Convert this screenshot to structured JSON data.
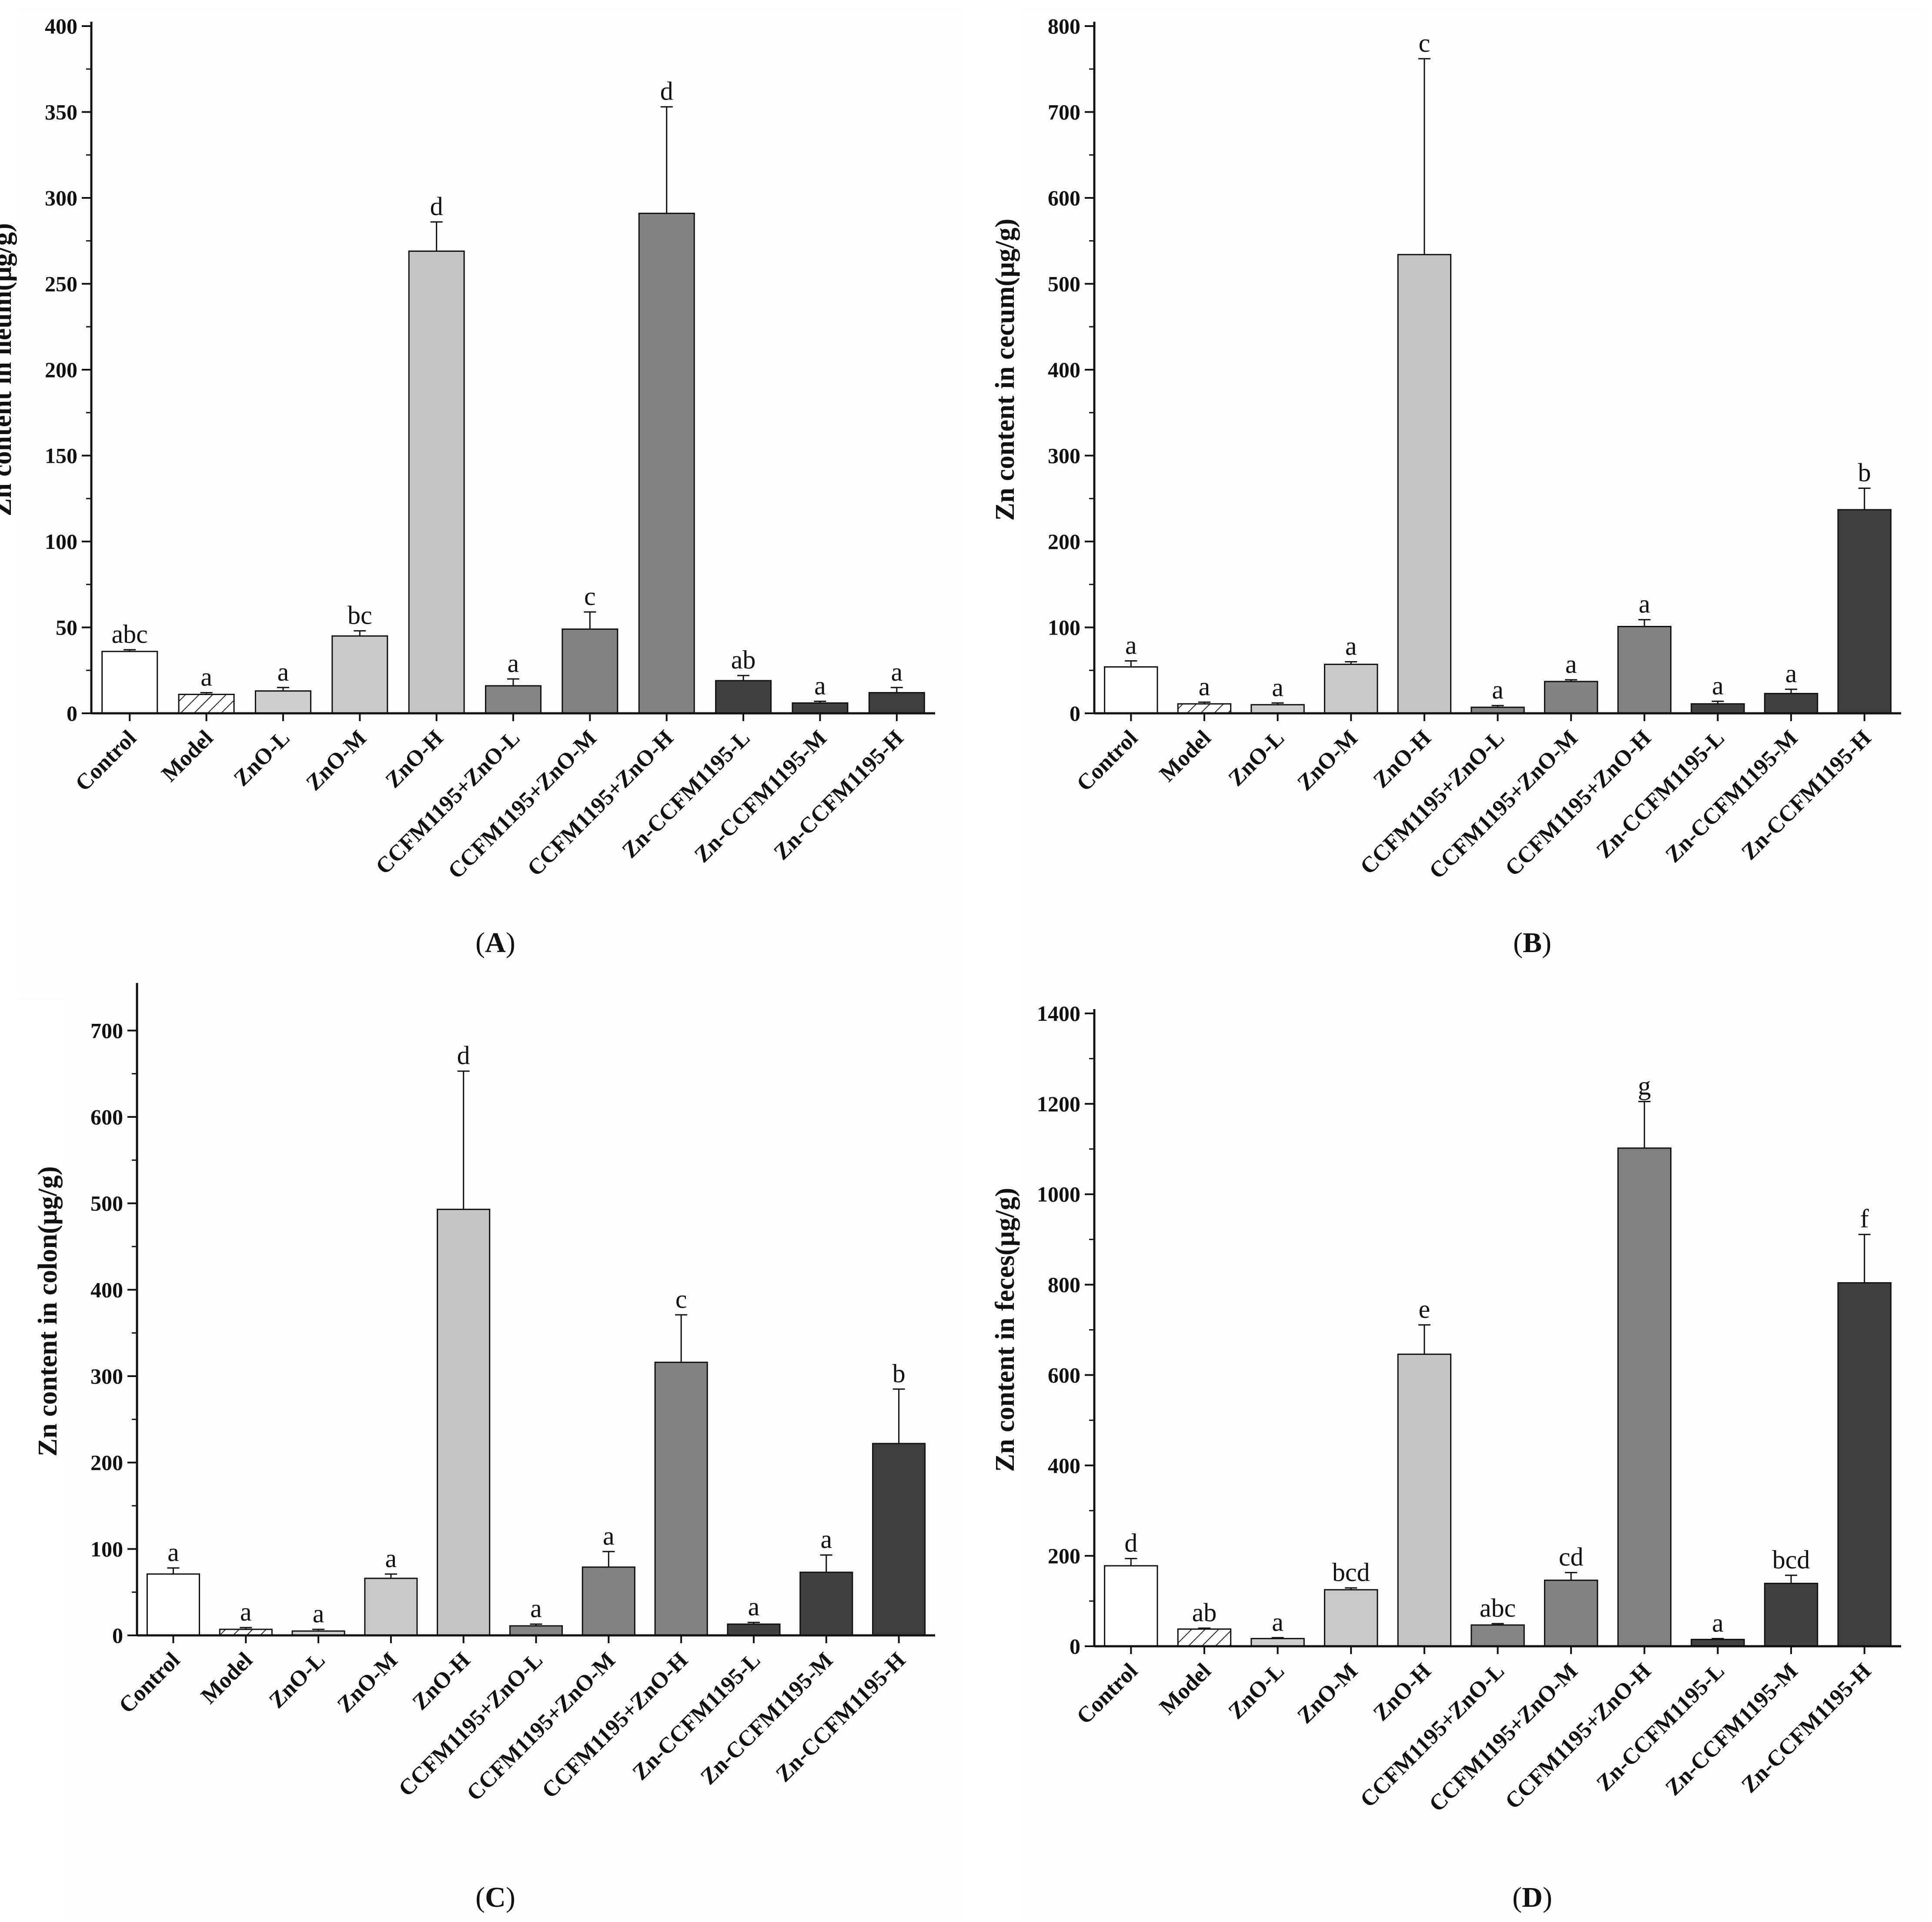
{
  "figure": {
    "panel_labels": [
      "A",
      "B",
      "C",
      "D"
    ]
  },
  "colors": {
    "Control": "#ffffff",
    "Model": "#ffffff",
    "ZnO-L": "#cfcfcf",
    "ZnO-M": "#c9c9c9",
    "ZnO-H": "#c4c4c4",
    "CCFM1195+ZnO-L": "#858585",
    "CCFM1195+ZnO-M": "#838383",
    "CCFM1195+ZnO-H": "#828282",
    "Zn-CCFM1195-L": "#424242",
    "Zn-CCFM1195-M": "#404040",
    "Zn-CCFM1195-H": "#3e3e3e"
  },
  "chart_data": [
    {
      "type": "bar",
      "panel": "A",
      "title": "",
      "xlabel": "",
      "ylabel": "Zn content in ileum(μg/g)",
      "ylim": [
        0,
        400
      ],
      "yticks": [
        0,
        50,
        100,
        150,
        200,
        250,
        300,
        350,
        400
      ],
      "categories": [
        "Control",
        "Model",
        "ZnO-L",
        "ZnO-M",
        "ZnO-H",
        "CCFM1195+ZnO-L",
        "CCFM1195+ZnO-M",
        "CCFM1195+ZnO-H",
        "Zn-CCFM1195-L",
        "Zn-CCFM1195-M",
        "Zn-CCFM1195-H"
      ],
      "values": [
        36,
        11,
        13,
        45,
        269,
        16,
        49,
        291,
        19,
        6,
        12
      ],
      "errors": [
        1,
        1,
        2,
        3,
        17,
        4,
        10,
        62,
        3,
        1,
        3
      ],
      "significance": [
        "abc",
        "a",
        "a",
        "bc",
        "d",
        "a",
        "c",
        "d",
        "ab",
        "a",
        "a"
      ]
    },
    {
      "type": "bar",
      "panel": "B",
      "title": "",
      "xlabel": "",
      "ylabel": "Zn content in cecum(μg/g)",
      "ylim": [
        0,
        800
      ],
      "yticks": [
        0,
        100,
        200,
        300,
        400,
        500,
        600,
        700,
        800
      ],
      "categories": [
        "Control",
        "Model",
        "ZnO-L",
        "ZnO-M",
        "ZnO-H",
        "CCFM1195+ZnO-L",
        "CCFM1195+ZnO-M",
        "CCFM1195+ZnO-H",
        "Zn-CCFM1195-L",
        "Zn-CCFM1195-M",
        "Zn-CCFM1195-H"
      ],
      "values": [
        54,
        11,
        10,
        57,
        534,
        7,
        37,
        101,
        11,
        23,
        237
      ],
      "errors": [
        7,
        2,
        2,
        3,
        228,
        2,
        2,
        8,
        3,
        5,
        25
      ],
      "significance": [
        "a",
        "a",
        "a",
        "a",
        "c",
        "a",
        "a",
        "a",
        "a",
        "a",
        "b"
      ]
    },
    {
      "type": "bar",
      "panel": "C",
      "title": "",
      "xlabel": "",
      "ylabel": "Zn content in colon(μg/g)",
      "ylim": [
        0,
        750
      ],
      "yticks": [
        0,
        100,
        200,
        300,
        400,
        500,
        600,
        700
      ],
      "categories": [
        "Control",
        "Model",
        "ZnO-L",
        "ZnO-M",
        "ZnO-H",
        "CCFM1195+ZnO-L",
        "CCFM1195+ZnO-M",
        "CCFM1195+ZnO-H",
        "Zn-CCFM1195-L",
        "Zn-CCFM1195-M",
        "Zn-CCFM1195-H"
      ],
      "values": [
        71,
        7,
        5,
        66,
        493,
        11,
        79,
        316,
        13,
        73,
        222
      ],
      "errors": [
        7,
        2,
        2,
        5,
        160,
        2,
        18,
        55,
        2,
        20,
        63
      ],
      "significance": [
        "a",
        "a",
        "a",
        "a",
        "d",
        "a",
        "a",
        "c",
        "a",
        "a",
        "b"
      ]
    },
    {
      "type": "bar",
      "panel": "D",
      "title": "",
      "xlabel": "",
      "ylabel": "Zn content in feces(μg/g)",
      "ylim": [
        0,
        1400
      ],
      "yticks": [
        0,
        200,
        400,
        600,
        800,
        1000,
        1200,
        1400
      ],
      "categories": [
        "Control",
        "Model",
        "ZnO-L",
        "ZnO-M",
        "ZnO-H",
        "CCFM1195+ZnO-L",
        "CCFM1195+ZnO-M",
        "CCFM1195+ZnO-H",
        "Zn-CCFM1195-L",
        "Zn-CCFM1195-M",
        "Zn-CCFM1195-H"
      ],
      "values": [
        178,
        38,
        17,
        125,
        646,
        47,
        146,
        1102,
        15,
        139,
        804
      ],
      "errors": [
        16,
        2,
        2,
        4,
        65,
        3,
        17,
        103,
        2,
        18,
        107
      ],
      "significance": [
        "d",
        "ab",
        "a",
        "bcd",
        "e",
        "abc",
        "cd",
        "g",
        "a",
        "bcd",
        "f"
      ]
    }
  ]
}
